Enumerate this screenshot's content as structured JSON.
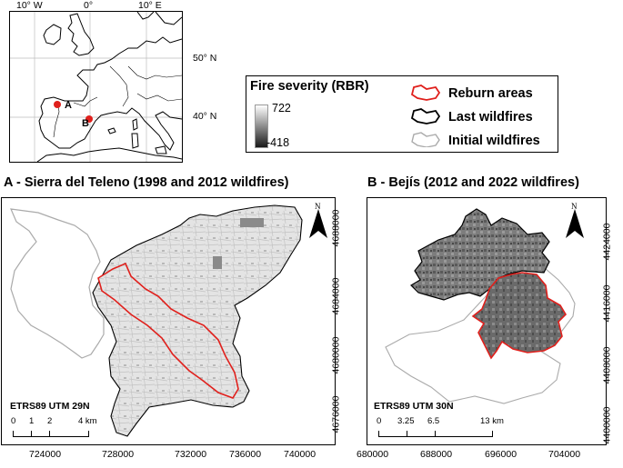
{
  "inset": {
    "lon_labels": [
      "10° W",
      "0°",
      "10° E"
    ],
    "lat_labels": [
      "50° N",
      "40° N"
    ],
    "site_a": "A",
    "site_b": "B",
    "marker_color": "#e0201c"
  },
  "legend": {
    "severity_title": "Fire severity (RBR)",
    "severity_max": "722",
    "severity_min": "-418",
    "reburn_label": "Reburn areas",
    "last_label": "Last wildfires",
    "initial_label": "Initial wildfires",
    "reburn_color": "#e0201c",
    "last_color": "#000000",
    "initial_color": "#aaaaaa"
  },
  "panel_a": {
    "title": "A - Sierra del Teleno (1998 and 2012 wildfires)",
    "north": "N",
    "crs": "ETRS89 UTM 29N",
    "scale_labels": [
      "0",
      "1",
      "2",
      "4 km"
    ],
    "x_ticks": [
      "724000",
      "728000",
      "732000",
      "736000",
      "740000"
    ],
    "y_ticks": [
      "4688000",
      "4684000",
      "4680000",
      "4676000"
    ]
  },
  "panel_b": {
    "title": "B - Bejís (2012 and 2022 wildfires)",
    "north": "N",
    "crs": "ETRS89 UTM 30N",
    "scale_labels": [
      "0",
      "3.25",
      "6.5",
      "13 km"
    ],
    "x_ticks": [
      "680000",
      "688000",
      "696000",
      "704000"
    ],
    "y_ticks": [
      "4424000",
      "4416000",
      "4408000",
      "4400000"
    ]
  }
}
